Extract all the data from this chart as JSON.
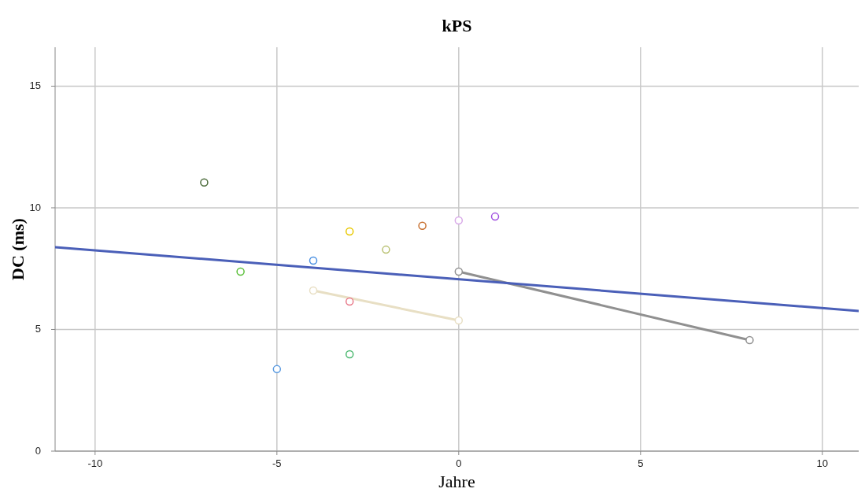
{
  "chart_data": {
    "type": "scatter",
    "title": "kPS",
    "xlabel": "Jahre",
    "ylabel": "DC (ms)",
    "xlim": [
      -11.1,
      11
    ],
    "ylim": [
      0,
      16.6
    ],
    "xticks": [
      -10,
      -5,
      0,
      5,
      10
    ],
    "yticks": [
      0,
      5,
      10,
      15
    ],
    "grid": true,
    "marker": "circle",
    "series": [
      {
        "color": "#4b6b3a",
        "x": [
          -7
        ],
        "values": [
          11.04
        ]
      },
      {
        "color": "#5bbf3a",
        "x": [
          -6
        ],
        "values": [
          7.38
        ]
      },
      {
        "color": "#5b9be0",
        "x": [
          -5
        ],
        "values": [
          3.37
        ]
      },
      {
        "color": "#4a90e2",
        "x": [
          -4
        ],
        "values": [
          7.83
        ]
      },
      {
        "type": "line",
        "color": "#e8dfc4",
        "x": [
          -4,
          0
        ],
        "values": [
          6.6,
          5.37
        ]
      },
      {
        "color": "#e8c800",
        "x": [
          -3
        ],
        "values": [
          9.03
        ]
      },
      {
        "color": "#e87a8a",
        "x": [
          -3
        ],
        "values": [
          6.15
        ]
      },
      {
        "color": "#4cb870",
        "x": [
          -3
        ],
        "values": [
          3.98
        ]
      },
      {
        "color": "#b8c070",
        "x": [
          -2
        ],
        "values": [
          8.28
        ]
      },
      {
        "color": "#c87030",
        "x": [
          -1
        ],
        "values": [
          9.26
        ]
      },
      {
        "color": "#d8a8e8",
        "x": [
          0
        ],
        "values": [
          9.48
        ]
      },
      {
        "color": "#a050e0",
        "x": [
          1
        ],
        "values": [
          9.64
        ]
      },
      {
        "type": "line",
        "color": "#909090",
        "x": [
          0,
          8
        ],
        "values": [
          7.38,
          4.56
        ]
      },
      {
        "type": "line",
        "marker": "none",
        "color": "#4a5fb8",
        "x": [
          -11.1,
          11
        ],
        "values": [
          8.38,
          5.76
        ]
      }
    ]
  }
}
